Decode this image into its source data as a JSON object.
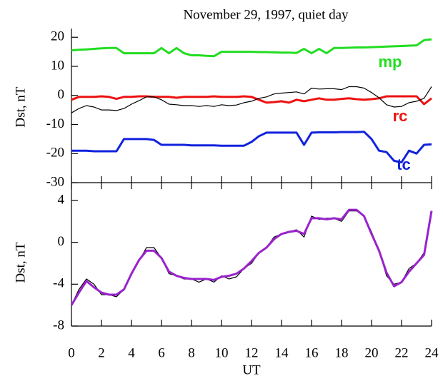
{
  "chart_data": [
    {
      "type": "line",
      "title": "November 29, 1997, quiet day",
      "ylabel": "Dst, nT",
      "x": [
        0,
        0.5,
        1,
        1.5,
        2,
        2.5,
        3,
        3.5,
        4,
        4.5,
        5,
        5.5,
        6,
        6.5,
        7,
        7.5,
        8,
        8.5,
        9,
        9.5,
        10,
        10.5,
        11,
        11.5,
        12,
        12.5,
        13,
        13.5,
        14,
        14.5,
        15,
        15.5,
        16,
        16.5,
        17,
        17.5,
        18,
        18.5,
        19,
        19.5,
        20,
        20.5,
        21,
        21.5,
        22,
        22.5,
        23,
        23.5,
        24
      ],
      "xlim": [
        0,
        24
      ],
      "ylim": [
        -30,
        23
      ],
      "yticks": [
        20,
        10,
        0,
        -10,
        -20,
        -30
      ],
      "series": [
        {
          "name": "mp",
          "color": "#22dd22",
          "values": [
            15.5,
            15.7,
            15.8,
            16,
            16.2,
            16.3,
            16.3,
            14.5,
            14.5,
            14.5,
            14.5,
            14.5,
            16.3,
            14.5,
            16.3,
            14.5,
            13.8,
            13.8,
            13.6,
            13.5,
            15,
            15,
            15,
            15,
            15,
            14.9,
            14.9,
            14.8,
            14.7,
            14.7,
            14.6,
            16,
            14.5,
            16,
            14.5,
            16.3,
            16.3,
            16.4,
            16.5,
            16.5,
            16.6,
            16.7,
            16.8,
            16.9,
            17,
            17.1,
            17.2,
            19,
            19.3
          ]
        },
        {
          "name": "rc",
          "color": "#ee1111",
          "values": [
            -1.5,
            -0.5,
            -0.5,
            -0.5,
            -0.3,
            -0.5,
            -1.2,
            -0.5,
            -0.5,
            -0.3,
            -0.3,
            -0.5,
            -0.5,
            -0.5,
            -0.8,
            -0.5,
            -0.5,
            -0.5,
            -0.5,
            -0.3,
            -0.5,
            -0.5,
            -0.5,
            -0.3,
            -0.5,
            -1.5,
            -2.5,
            -2.3,
            -2,
            -2.5,
            -1.5,
            -2,
            -1.5,
            -1,
            -1.5,
            -1.5,
            -1.2,
            -1,
            -1.3,
            -1.5,
            -1.3,
            -1,
            -0.3,
            -0.3,
            -0.3,
            -0.3,
            -0.3,
            -3,
            -1
          ]
        },
        {
          "name": "tc",
          "color": "#1122dd",
          "values": [
            -19,
            -19,
            -19,
            -19.2,
            -19.2,
            -19.2,
            -19.2,
            -15,
            -15,
            -15,
            -15,
            -15.3,
            -17,
            -17,
            -17,
            -17,
            -17.2,
            -17.2,
            -17.2,
            -17.2,
            -17.3,
            -17.3,
            -17.3,
            -17.3,
            -16,
            -14,
            -12.8,
            -12.8,
            -12.8,
            -12.8,
            -12.8,
            -17,
            -12.8,
            -12.7,
            -12.7,
            -12.7,
            -12.6,
            -12.6,
            -12.6,
            -12.5,
            -15,
            -19,
            -19.5,
            -22.5,
            -23,
            -19,
            -20,
            -17,
            -16.8
          ]
        },
        {
          "color": "#000000",
          "values": [
            -6,
            -4.5,
            -3.5,
            -4,
            -5,
            -5,
            -5.2,
            -4.5,
            -3,
            -1.8,
            -0.5,
            -0.5,
            -1.5,
            -3,
            -3.2,
            -3.5,
            -3.5,
            -3.8,
            -3.5,
            -3.8,
            -3.2,
            -3.5,
            -3.3,
            -2.5,
            -2,
            -1,
            -0.5,
            0.5,
            0.8,
            1,
            1.2,
            0.5,
            2.5,
            2.2,
            2.3,
            2.3,
            2,
            3,
            3,
            2.5,
            1,
            -0.8,
            -3.2,
            -4,
            -3.8,
            -2.5,
            -2,
            -1,
            3
          ]
        }
      ]
    },
    {
      "type": "line",
      "ylabel": "Dst, nT",
      "xlabel": "UT",
      "x": [
        0,
        0.5,
        1,
        1.5,
        2,
        2.5,
        3,
        3.5,
        4,
        4.5,
        5,
        5.5,
        6,
        6.5,
        7,
        7.5,
        8,
        8.5,
        9,
        9.5,
        10,
        10.5,
        11,
        11.5,
        12,
        12.5,
        13,
        13.5,
        14,
        14.5,
        15,
        15.5,
        16,
        16.5,
        17,
        17.5,
        18,
        18.5,
        19,
        19.5,
        20,
        20.5,
        21,
        21.5,
        22,
        22.5,
        23,
        23.5,
        24
      ],
      "xlim": [
        0,
        24
      ],
      "xticks": [
        0,
        2,
        4,
        6,
        8,
        10,
        12,
        14,
        16,
        18,
        20,
        22,
        24
      ],
      "ylim": [
        -8,
        5.7
      ],
      "yticks": [
        4,
        0,
        -4,
        -8
      ],
      "series": [
        {
          "color": "#000000",
          "values": [
            -6,
            -4.5,
            -3.5,
            -4,
            -5,
            -5,
            -5.2,
            -4.5,
            -3,
            -1.8,
            -0.5,
            -0.5,
            -1.5,
            -3,
            -3.2,
            -3.5,
            -3.5,
            -3.8,
            -3.5,
            -3.8,
            -3.2,
            -3.5,
            -3.3,
            -2.5,
            -2,
            -1,
            -0.5,
            0.5,
            0.8,
            1,
            1.2,
            0.5,
            2.5,
            2.2,
            2.3,
            2.3,
            2,
            3,
            3,
            2.5,
            1,
            -0.8,
            -3.2,
            -4,
            -3.8,
            -2.5,
            -2,
            -1,
            3
          ]
        },
        {
          "color": "#9922cc",
          "values": [
            -6,
            -4.8,
            -3.7,
            -4.3,
            -4.8,
            -5,
            -5,
            -4.5,
            -3,
            -1.7,
            -0.8,
            -0.8,
            -1.5,
            -2.8,
            -3.2,
            -3.4,
            -3.5,
            -3.5,
            -3.5,
            -3.6,
            -3.3,
            -3.2,
            -3,
            -2.5,
            -1.8,
            -1,
            -0.5,
            0.3,
            0.8,
            1,
            1.1,
            0.8,
            2.3,
            2.3,
            2.2,
            2.3,
            2.2,
            3.1,
            3.1,
            2.5,
            0.8,
            -0.8,
            -2.9,
            -4.2,
            -3.8,
            -2.8,
            -2,
            -1.2,
            3
          ]
        }
      ]
    }
  ]
}
